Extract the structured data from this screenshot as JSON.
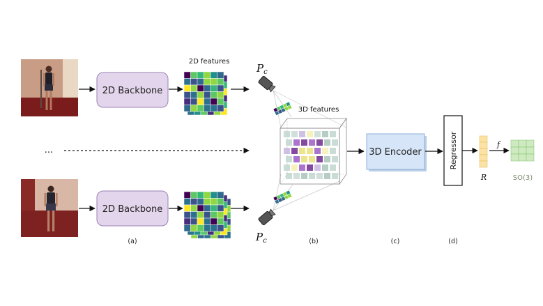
{
  "inputs": {
    "top_image": "person-view-front",
    "bottom_image": "person-view-back",
    "ellipsis": "..."
  },
  "backbone": {
    "top_label": "2D Backbone",
    "bottom_label": "2D Backbone"
  },
  "features_2d": {
    "title": "2D features"
  },
  "camera": {
    "top_label": "P",
    "top_sub": "c",
    "bottom_label": "P",
    "bottom_sub": "c"
  },
  "features_3d": {
    "title": "3D features"
  },
  "encoder": {
    "label": "3D Encoder"
  },
  "regressor": {
    "label": "Regressor"
  },
  "output": {
    "r_label": "R",
    "f_label": "f",
    "so3_label": "SO(3)"
  },
  "stage_labels": {
    "a": "(a)",
    "b": "(b)",
    "c": "(c)",
    "d": "(d)"
  },
  "colors": {
    "backbone_fill": "#e3d5ec",
    "encoder_fill": "#d6e5f7",
    "r_fill": "#fbe3a6",
    "so3_fill": "#cfeac0",
    "viridis_low": "#440154",
    "viridis_high": "#fde725"
  }
}
